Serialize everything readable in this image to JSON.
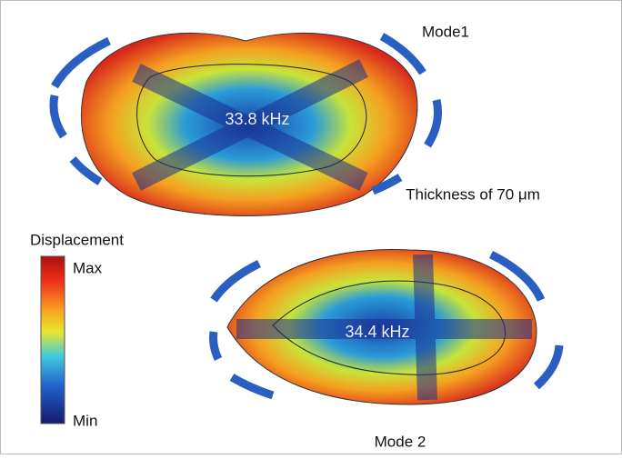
{
  "mode1": {
    "label": "Mode1",
    "frequency": "33.8 kHz",
    "note": "Thickness of 70 μm"
  },
  "colorbar": {
    "title": "Displacement",
    "max_label": "Max",
    "min_label": "Min"
  },
  "mode2": {
    "label": "Mode 2",
    "frequency": "34.4 kHz"
  }
}
